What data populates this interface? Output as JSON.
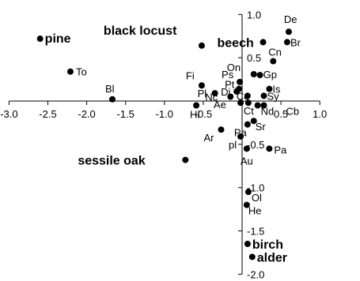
{
  "chart_data": {
    "type": "scatter",
    "title": "",
    "xlabel": "",
    "ylabel": "",
    "xlim": [
      -3.0,
      1.0
    ],
    "ylim": [
      -2.0,
      1.0
    ],
    "grid": false,
    "axis_color": "#000000",
    "point_color": "#000000",
    "xticks": [
      -3.0,
      -2.5,
      -2.0,
      -1.5,
      -1.0,
      -0.5,
      0.5,
      1.0
    ],
    "xtick_labels": [
      "-3.0",
      "-2.5",
      "-2.0",
      "-1.5",
      "-1.0",
      "-0.5",
      "0.5",
      "1.0"
    ],
    "yticks": [
      1.0,
      0.5,
      -0.5,
      -1.0,
      -1.5,
      -2.0
    ],
    "ytick_labels": [
      "1.0",
      "0.5",
      "-0.5",
      "-1.0",
      "-1.5",
      "-2.0"
    ],
    "points": [
      {
        "label": "pine",
        "x": -2.6,
        "y": 0.72,
        "bold": true
      },
      {
        "label": "To",
        "x": -2.21,
        "y": 0.34,
        "bold": false
      },
      {
        "label": "Bl",
        "x": -1.67,
        "y": 0.02,
        "bold": false
      },
      {
        "label": "black locust",
        "x": -0.52,
        "y": 0.64,
        "bold": true
      },
      {
        "label": "Fi",
        "x": -0.52,
        "y": 0.18,
        "bold": false
      },
      {
        "label": "Pl",
        "x": -0.35,
        "y": 0.09,
        "bold": false
      },
      {
        "label": "Hi",
        "x": -0.59,
        "y": -0.05,
        "bold": false
      },
      {
        "label": "Ps",
        "x": -0.03,
        "y": 0.22,
        "bold": false
      },
      {
        "label": "Pt",
        "x": -0.04,
        "y": 0.14,
        "bold": false
      },
      {
        "label": "Di",
        "x": -0.07,
        "y": 0.11,
        "bold": false
      },
      {
        "label": "Nc",
        "x": -0.15,
        "y": 0.05,
        "bold": false
      },
      {
        "label": "Ae",
        "x": -0.02,
        "y": -0.02,
        "bold": false
      },
      {
        "label": "Ct",
        "x": 0.08,
        "y": -0.02,
        "bold": false
      },
      {
        "label": "Co",
        "x": 0.07,
        "y": 0.06,
        "bold": false
      },
      {
        "label": "Ar",
        "x": -0.27,
        "y": -0.33,
        "bold": false
      },
      {
        "label": "pl",
        "x": -0.02,
        "y": -0.41,
        "bold": false
      },
      {
        "label": "Pa",
        "x": 0.07,
        "y": -0.27,
        "bold": false
      },
      {
        "label": "Au",
        "x": 0.06,
        "y": -0.55,
        "bold": false
      },
      {
        "label": "Pa",
        "x": 0.35,
        "y": -0.55,
        "bold": false
      },
      {
        "label": "sessile oak",
        "x": -0.73,
        "y": -0.68,
        "bold": true
      },
      {
        "label": "beech",
        "x": 0.27,
        "y": 0.68,
        "bold": true
      },
      {
        "label": "De",
        "x": 0.6,
        "y": 0.8,
        "bold": false
      },
      {
        "label": "Br",
        "x": 0.58,
        "y": 0.68,
        "bold": false
      },
      {
        "label": "Cn",
        "x": 0.4,
        "y": 0.46,
        "bold": false
      },
      {
        "label": "On",
        "x": 0.15,
        "y": 0.31,
        "bold": false
      },
      {
        "label": "Gp",
        "x": 0.23,
        "y": 0.3,
        "bold": false
      },
      {
        "label": "Is",
        "x": 0.35,
        "y": 0.14,
        "bold": false
      },
      {
        "label": "Sy",
        "x": 0.28,
        "y": 0.06,
        "bold": false
      },
      {
        "label": "Nd",
        "x": 0.2,
        "y": -0.05,
        "bold": false
      },
      {
        "label": "Cb",
        "x": 0.28,
        "y": -0.05,
        "bold": false
      },
      {
        "label": "Sr",
        "x": 0.15,
        "y": -0.23,
        "bold": false
      },
      {
        "label": "Ol",
        "x": 0.08,
        "y": -1.05,
        "bold": false
      },
      {
        "label": "He",
        "x": 0.06,
        "y": -1.2,
        "bold": false
      },
      {
        "label": "birch",
        "x": 0.07,
        "y": -1.65,
        "bold": true
      },
      {
        "label": "alder",
        "x": 0.13,
        "y": -1.8,
        "bold": true
      }
    ]
  }
}
